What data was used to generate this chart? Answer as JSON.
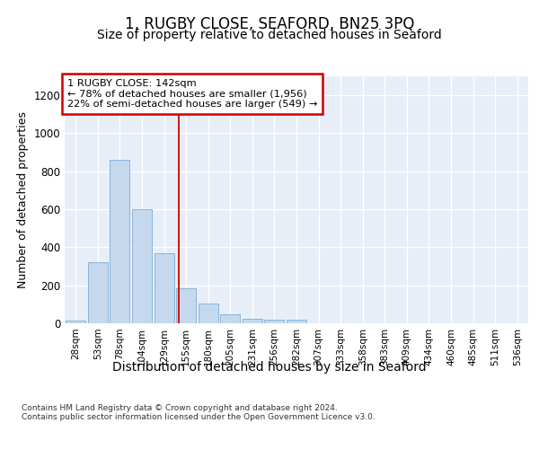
{
  "title": "1, RUGBY CLOSE, SEAFORD, BN25 3PQ",
  "subtitle": "Size of property relative to detached houses in Seaford",
  "xlabel": "Distribution of detached houses by size in Seaford",
  "ylabel": "Number of detached properties",
  "bar_labels": [
    "28sqm",
    "53sqm",
    "78sqm",
    "104sqm",
    "129sqm",
    "155sqm",
    "180sqm",
    "205sqm",
    "231sqm",
    "256sqm",
    "282sqm",
    "307sqm",
    "333sqm",
    "358sqm",
    "383sqm",
    "409sqm",
    "434sqm",
    "460sqm",
    "485sqm",
    "511sqm",
    "536sqm"
  ],
  "bar_values": [
    12,
    320,
    860,
    600,
    370,
    185,
    105,
    47,
    25,
    20,
    20,
    0,
    0,
    0,
    0,
    0,
    0,
    0,
    0,
    0,
    0
  ],
  "bar_color": "#c5d8ee",
  "bar_edge_color": "#7baed4",
  "vline_x": 4.65,
  "annotation_text": "1 RUGBY CLOSE: 142sqm\n← 78% of detached houses are smaller (1,956)\n22% of semi-detached houses are larger (549) →",
  "annotation_box_color": "#ffffff",
  "annotation_box_edge": "#cc0000",
  "vline_color": "#cc0000",
  "ylim": [
    0,
    1300
  ],
  "yticks": [
    0,
    200,
    400,
    600,
    800,
    1000,
    1200
  ],
  "plot_bg": "#e8eef8",
  "footer": "Contains HM Land Registry data © Crown copyright and database right 2024.\nContains public sector information licensed under the Open Government Licence v3.0.",
  "title_fontsize": 12,
  "subtitle_fontsize": 10,
  "xlabel_fontsize": 10,
  "ylabel_fontsize": 9
}
